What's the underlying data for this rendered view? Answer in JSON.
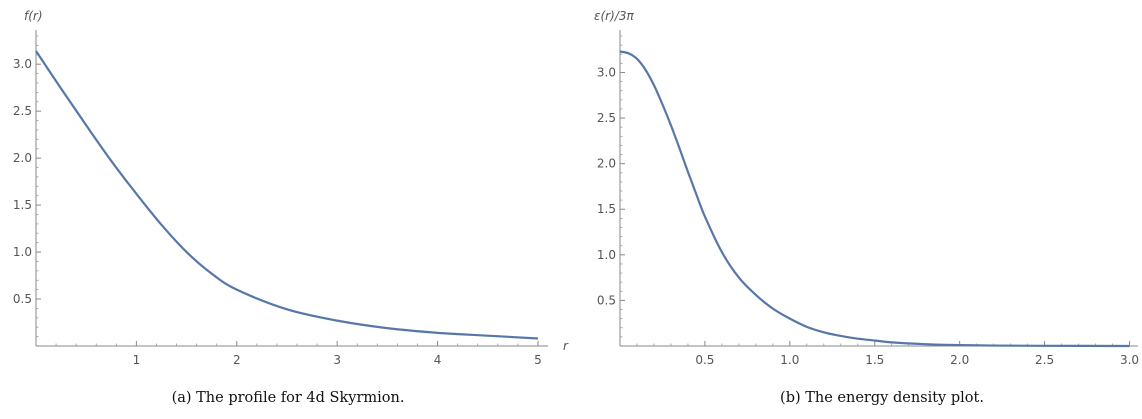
{
  "chart_data": [
    {
      "type": "line",
      "xlabel": "r",
      "ylabel": "f(r)",
      "caption": "(a)  The profile for 4d Skyrmion.",
      "xlim": [
        0,
        5.1
      ],
      "ylim": [
        0,
        3.3
      ],
      "x_ticks": [
        1,
        2,
        3,
        4,
        5
      ],
      "y_ticks": [
        0.5,
        1.0,
        1.5,
        2.0,
        2.5,
        3.0
      ],
      "x_tick_labels": [
        "1",
        "2",
        "3",
        "4",
        "5"
      ],
      "y_tick_labels": [
        "0.5",
        "1.0",
        "1.5",
        "2.0",
        "2.5",
        "3.0"
      ],
      "color": "#5677a8",
      "series": [
        {
          "x": [
            0,
            0.25,
            0.5,
            0.75,
            1.0,
            1.25,
            1.5,
            1.75,
            2.0,
            2.5,
            3.0,
            3.5,
            4.0,
            4.5,
            5.0
          ],
          "y": [
            3.14,
            2.74,
            2.35,
            1.97,
            1.62,
            1.29,
            1.0,
            0.77,
            0.6,
            0.39,
            0.27,
            0.19,
            0.14,
            0.11,
            0.08
          ]
        }
      ]
    },
    {
      "type": "line",
      "xlabel": "",
      "ylabel": "ε(r)/3π",
      "caption": "(b)  The energy density plot.",
      "xlim": [
        0,
        3.05
      ],
      "ylim": [
        0,
        3.4
      ],
      "x_ticks": [
        0.5,
        1.0,
        1.5,
        2.0,
        2.5,
        3.0
      ],
      "y_ticks": [
        0.5,
        1.0,
        1.5,
        2.0,
        2.5,
        3.0
      ],
      "x_tick_labels": [
        "0.5",
        "1.0",
        "1.5",
        "2.0",
        "2.5",
        "3.0"
      ],
      "y_tick_labels": [
        "0.5",
        "1.0",
        "1.5",
        "2.0",
        "2.5",
        "3.0"
      ],
      "color": "#5677a8",
      "series": [
        {
          "x": [
            0,
            0.05,
            0.1,
            0.15,
            0.2,
            0.25,
            0.3,
            0.35,
            0.4,
            0.45,
            0.5,
            0.6,
            0.7,
            0.8,
            0.9,
            1.0,
            1.1,
            1.2,
            1.3,
            1.4,
            1.5,
            1.6,
            1.8,
            2.0,
            2.2,
            2.5,
            3.0
          ],
          "y": [
            3.23,
            3.21,
            3.15,
            3.03,
            2.86,
            2.65,
            2.42,
            2.17,
            1.91,
            1.66,
            1.42,
            1.03,
            0.75,
            0.56,
            0.41,
            0.3,
            0.21,
            0.15,
            0.11,
            0.08,
            0.06,
            0.04,
            0.02,
            0.01,
            0.005,
            0.002,
            0.0
          ]
        }
      ]
    }
  ]
}
